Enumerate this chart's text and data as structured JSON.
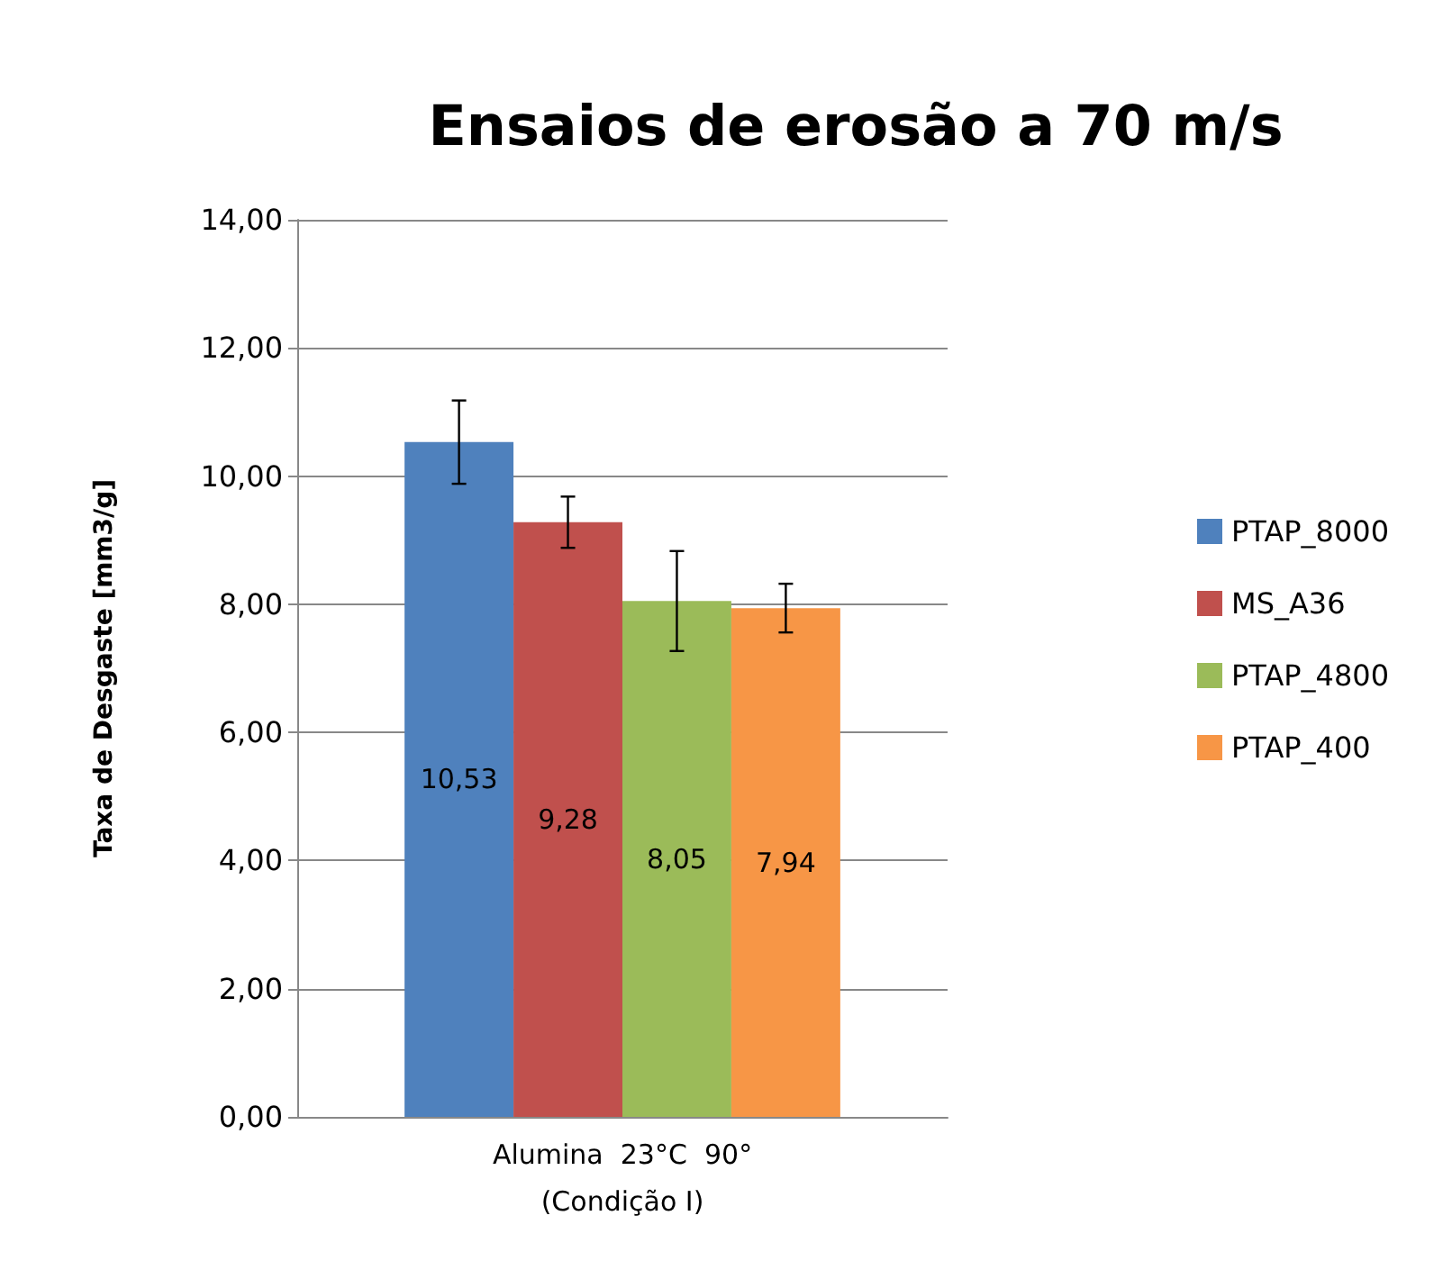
{
  "chart_data": {
    "type": "bar",
    "title": "Ensaios de erosão a 70 m/s",
    "ylabel": "Taxa de Desgaste [mm3/g]",
    "categories": [
      "Alumina  23°C  90°\n(Condição I)"
    ],
    "series": [
      {
        "name": "PTAP_8000",
        "color": "#4f81bd",
        "values": [
          10.53
        ],
        "value_labels": [
          "10,53"
        ],
        "errors": [
          0.65
        ]
      },
      {
        "name": "MS_A36",
        "color": "#c0504d",
        "values": [
          9.28
        ],
        "value_labels": [
          "9,28"
        ],
        "errors": [
          0.4
        ]
      },
      {
        "name": "PTAP_4800",
        "color": "#9bbb59",
        "values": [
          8.05
        ],
        "value_labels": [
          "8,05"
        ],
        "errors": [
          0.78
        ]
      },
      {
        "name": "PTAP_400",
        "color": "#f79646",
        "values": [
          7.94
        ],
        "value_labels": [
          "7,94"
        ],
        "errors": [
          0.38
        ]
      }
    ],
    "ylim": [
      0,
      14
    ],
    "yticks": [
      {
        "value": 0,
        "label": "0,00"
      },
      {
        "value": 2,
        "label": "2,00"
      },
      {
        "value": 4,
        "label": "4,00"
      },
      {
        "value": 6,
        "label": "6,00"
      },
      {
        "value": 8,
        "label": "8,00"
      },
      {
        "value": 10,
        "label": "10,00"
      },
      {
        "value": 12,
        "label": "12,00"
      },
      {
        "value": 14,
        "label": "14,00"
      }
    ],
    "grid": "y",
    "legend": "right"
  }
}
